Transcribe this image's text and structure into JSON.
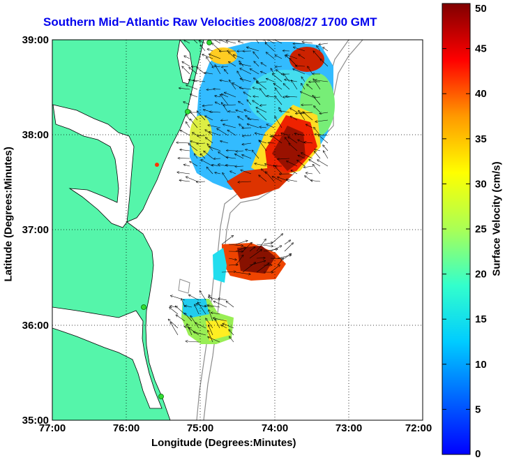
{
  "chart_data": {
    "type": "heatmap",
    "title": "Southern Mid−Atlantic Raw Velocities 2008/08/27 1700 GMT",
    "xlabel": "Longitude (Degrees:Minutes)",
    "ylabel": "Latitude (Degrees:Minutes)",
    "x_ticks": [
      "77:00",
      "76:00",
      "75:00",
      "74:00",
      "73:00",
      "72:00"
    ],
    "y_ticks": [
      "39:00",
      "38:00",
      "37:00",
      "36:00",
      "35:00"
    ],
    "colorbar": {
      "label": "Surface Velocity (cm/s)",
      "ticks": [
        "50",
        "45",
        "40",
        "35",
        "30",
        "25",
        "20",
        "15",
        "10",
        "5",
        "0"
      ],
      "range": [
        0,
        50
      ],
      "colormap": "jet"
    },
    "grid": true,
    "colors": {
      "title": "#0000ee",
      "land": "#55f5aa",
      "site_markers": "#33dd33",
      "coast": "#000000",
      "isobath": "#8c8c8c"
    }
  }
}
